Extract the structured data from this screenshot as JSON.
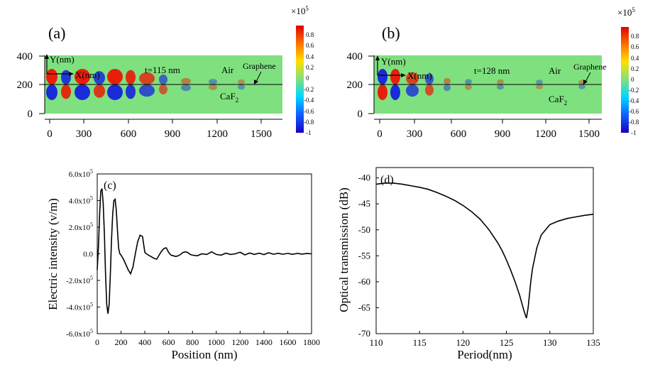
{
  "panel_a": {
    "letter": "(a)",
    "annotation": "t=115 nm",
    "air_label": "Air",
    "graphene_label": "Graphene",
    "substrate_label": "CaF",
    "substrate_sub": "2",
    "y_axis_label": "Y(nm)",
    "x_axis_label": "X(nm)",
    "x_ticks": [
      "0",
      "300",
      "600",
      "900",
      "1200",
      "1500"
    ],
    "y_ticks": [
      "400",
      "200",
      "0"
    ],
    "scale_label": "×10",
    "scale_exp": "5",
    "colorbar_ticks": [
      "0.8",
      "0.6",
      "0.4",
      "0.2",
      "0",
      "-0.2",
      "-0.4",
      "-0.6",
      "-0.8",
      "-1"
    ]
  },
  "panel_b": {
    "letter": "(b)",
    "annotation": "t=128 nm",
    "air_label": "Air",
    "graphene_label": "Graphene",
    "substrate_label": "CaF",
    "substrate_sub": "2",
    "y_axis_label": "Y(nm)",
    "x_axis_label": "X(nm)",
    "x_ticks": [
      "0",
      "300",
      "600",
      "900",
      "1200",
      "1500"
    ],
    "y_ticks": [
      "400",
      "200",
      "0"
    ],
    "scale_label": "×10",
    "scale_exp": "5",
    "colorbar_ticks": [
      "0.8",
      "0.6",
      "0.4",
      "0.2",
      "0",
      "-0.2",
      "-0.4",
      "-0.6",
      "-0.8",
      "-1"
    ]
  },
  "colors": {
    "field_background": "#7fe07f",
    "positive": "#e81e0a",
    "negative": "#1a2bd9",
    "line": "#000000"
  },
  "chart_data": [
    {
      "type": "line",
      "panel": "(c)",
      "xlabel": "Position (nm)",
      "ylabel": "Electric intensity (v/m)",
      "xlim": [
        0,
        1800
      ],
      "ylim": [
        -600000.0,
        600000.0
      ],
      "x_ticks": [
        "0",
        "200",
        "400",
        "600",
        "800",
        "1000",
        "1200",
        "1400",
        "1600",
        "1800"
      ],
      "y_ticks": [
        {
          "mant": "6.0x10",
          "exp": "5",
          "value": 600000
        },
        {
          "mant": "4.0x10",
          "exp": "5",
          "value": 400000
        },
        {
          "mant": "2.0x10",
          "exp": "5",
          "value": 200000
        },
        {
          "mant": "0.0",
          "exp": "",
          "value": 0
        },
        {
          "mant": "-2.0x10",
          "exp": "5",
          "value": -200000
        },
        {
          "mant": "-4.0x10",
          "exp": "5",
          "value": -400000
        },
        {
          "mant": "-6.0x10",
          "exp": "5",
          "value": -600000
        }
      ],
      "x": [
        0,
        10,
        20,
        30,
        40,
        50,
        60,
        70,
        80,
        90,
        100,
        110,
        120,
        130,
        140,
        150,
        160,
        170,
        180,
        190,
        200,
        220,
        240,
        260,
        280,
        300,
        320,
        340,
        360,
        380,
        400,
        420,
        440,
        460,
        480,
        500,
        520,
        540,
        560,
        580,
        600,
        620,
        640,
        660,
        680,
        700,
        720,
        740,
        760,
        780,
        800,
        840,
        880,
        920,
        960,
        1000,
        1040,
        1080,
        1120,
        1160,
        1200,
        1240,
        1280,
        1320,
        1360,
        1400,
        1440,
        1480,
        1520,
        1560,
        1600,
        1640,
        1680,
        1720,
        1760,
        1800
      ],
      "y": [
        -120000,
        50000,
        300000,
        470000,
        490000,
        380000,
        150000,
        -150000,
        -380000,
        -450000,
        -380000,
        -150000,
        100000,
        300000,
        400000,
        410000,
        330000,
        180000,
        40000,
        0,
        -10000,
        -40000,
        -80000,
        -120000,
        -150000,
        -100000,
        0,
        90000,
        140000,
        130000,
        10000,
        -5000,
        -15000,
        -25000,
        -35000,
        -40000,
        -10000,
        20000,
        40000,
        45000,
        10000,
        -10000,
        -15000,
        -20000,
        -15000,
        -5000,
        10000,
        15000,
        10000,
        -5000,
        -10000,
        -15000,
        0,
        -5000,
        15000,
        -5000,
        -10000,
        5000,
        -5000,
        0,
        12000,
        -8000,
        6000,
        -5000,
        5000,
        -6000,
        8000,
        -3000,
        4000,
        -3000,
        3000,
        -4000,
        3000,
        -2000,
        2000,
        0
      ]
    },
    {
      "type": "line",
      "panel": "(d)",
      "xlabel": "Period(nm)",
      "ylabel": "Optical transmission (dB)",
      "xlim": [
        110,
        135
      ],
      "ylim": [
        -70,
        -38
      ],
      "x_ticks": [
        "110",
        "115",
        "120",
        "125",
        "130",
        "135"
      ],
      "y_ticks": [
        "-40",
        "-45",
        "-50",
        "-55",
        "-60",
        "-65",
        "-70"
      ],
      "x": [
        110,
        111,
        112,
        113,
        114,
        115,
        116,
        117,
        118,
        119,
        120,
        121,
        122,
        123,
        124,
        124.5,
        125,
        125.5,
        126,
        126.5,
        127,
        127.3,
        127.5,
        127.8,
        128,
        128.5,
        129,
        130,
        131,
        132,
        133,
        134,
        135
      ],
      "y": [
        -41.2,
        -41.0,
        -41.0,
        -41.2,
        -41.5,
        -41.8,
        -42.2,
        -42.8,
        -43.5,
        -44.3,
        -45.3,
        -46.5,
        -48.0,
        -50.0,
        -52.5,
        -54.0,
        -55.8,
        -57.8,
        -60.0,
        -62.5,
        -65.5,
        -67.0,
        -65.0,
        -60.0,
        -57.5,
        -53.5,
        -51.0,
        -49.0,
        -48.3,
        -47.8,
        -47.5,
        -47.2,
        -47.0
      ]
    }
  ]
}
